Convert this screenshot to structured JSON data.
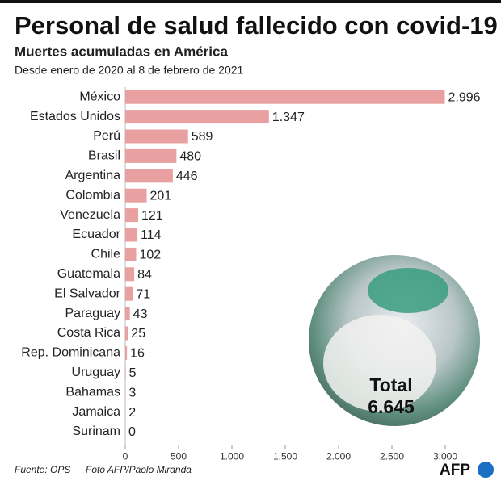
{
  "chart_data": {
    "type": "hbar",
    "title": "Personal de salud fallecido con covid-19",
    "subtitle": "Muertes acumuladas en América",
    "note": "Desde enero de 2020 al 8 de febrero de 2021",
    "categories": [
      "México",
      "Estados Unidos",
      "Perú",
      "Brasil",
      "Argentina",
      "Colombia",
      "Venezuela",
      "Ecuador",
      "Chile",
      "Guatemala",
      "El Salvador",
      "Paraguay",
      "Costa Rica",
      "Rep. Dominicana",
      "Uruguay",
      "Bahamas",
      "Jamaica",
      "Surinam"
    ],
    "values": [
      2996,
      1347,
      589,
      480,
      446,
      201,
      121,
      114,
      102,
      84,
      71,
      43,
      25,
      16,
      5,
      3,
      2,
      0
    ],
    "value_labels": [
      "2.996",
      "1.347",
      "589",
      "480",
      "446",
      "201",
      "121",
      "114",
      "102",
      "84",
      "71",
      "43",
      "25",
      "16",
      "5",
      "3",
      "2",
      "0"
    ],
    "color": "#e8a0a0",
    "xlim": [
      0,
      3000
    ],
    "xticks": [
      0,
      500,
      {
        "value": 1000,
        "label": "1.000"
      },
      {
        "value": 1500,
        "label": "1.500"
      },
      {
        "value": 2000,
        "label": "2.000"
      },
      {
        "value": 2500,
        "label": "2.500"
      },
      {
        "value": 3000,
        "label": "3.000"
      }
    ],
    "total_label": "Total",
    "total_value": "6.645",
    "source": "Fuente: OPS",
    "photo_credit": "Foto AFP/Paolo Miranda",
    "logo": "AFP"
  }
}
